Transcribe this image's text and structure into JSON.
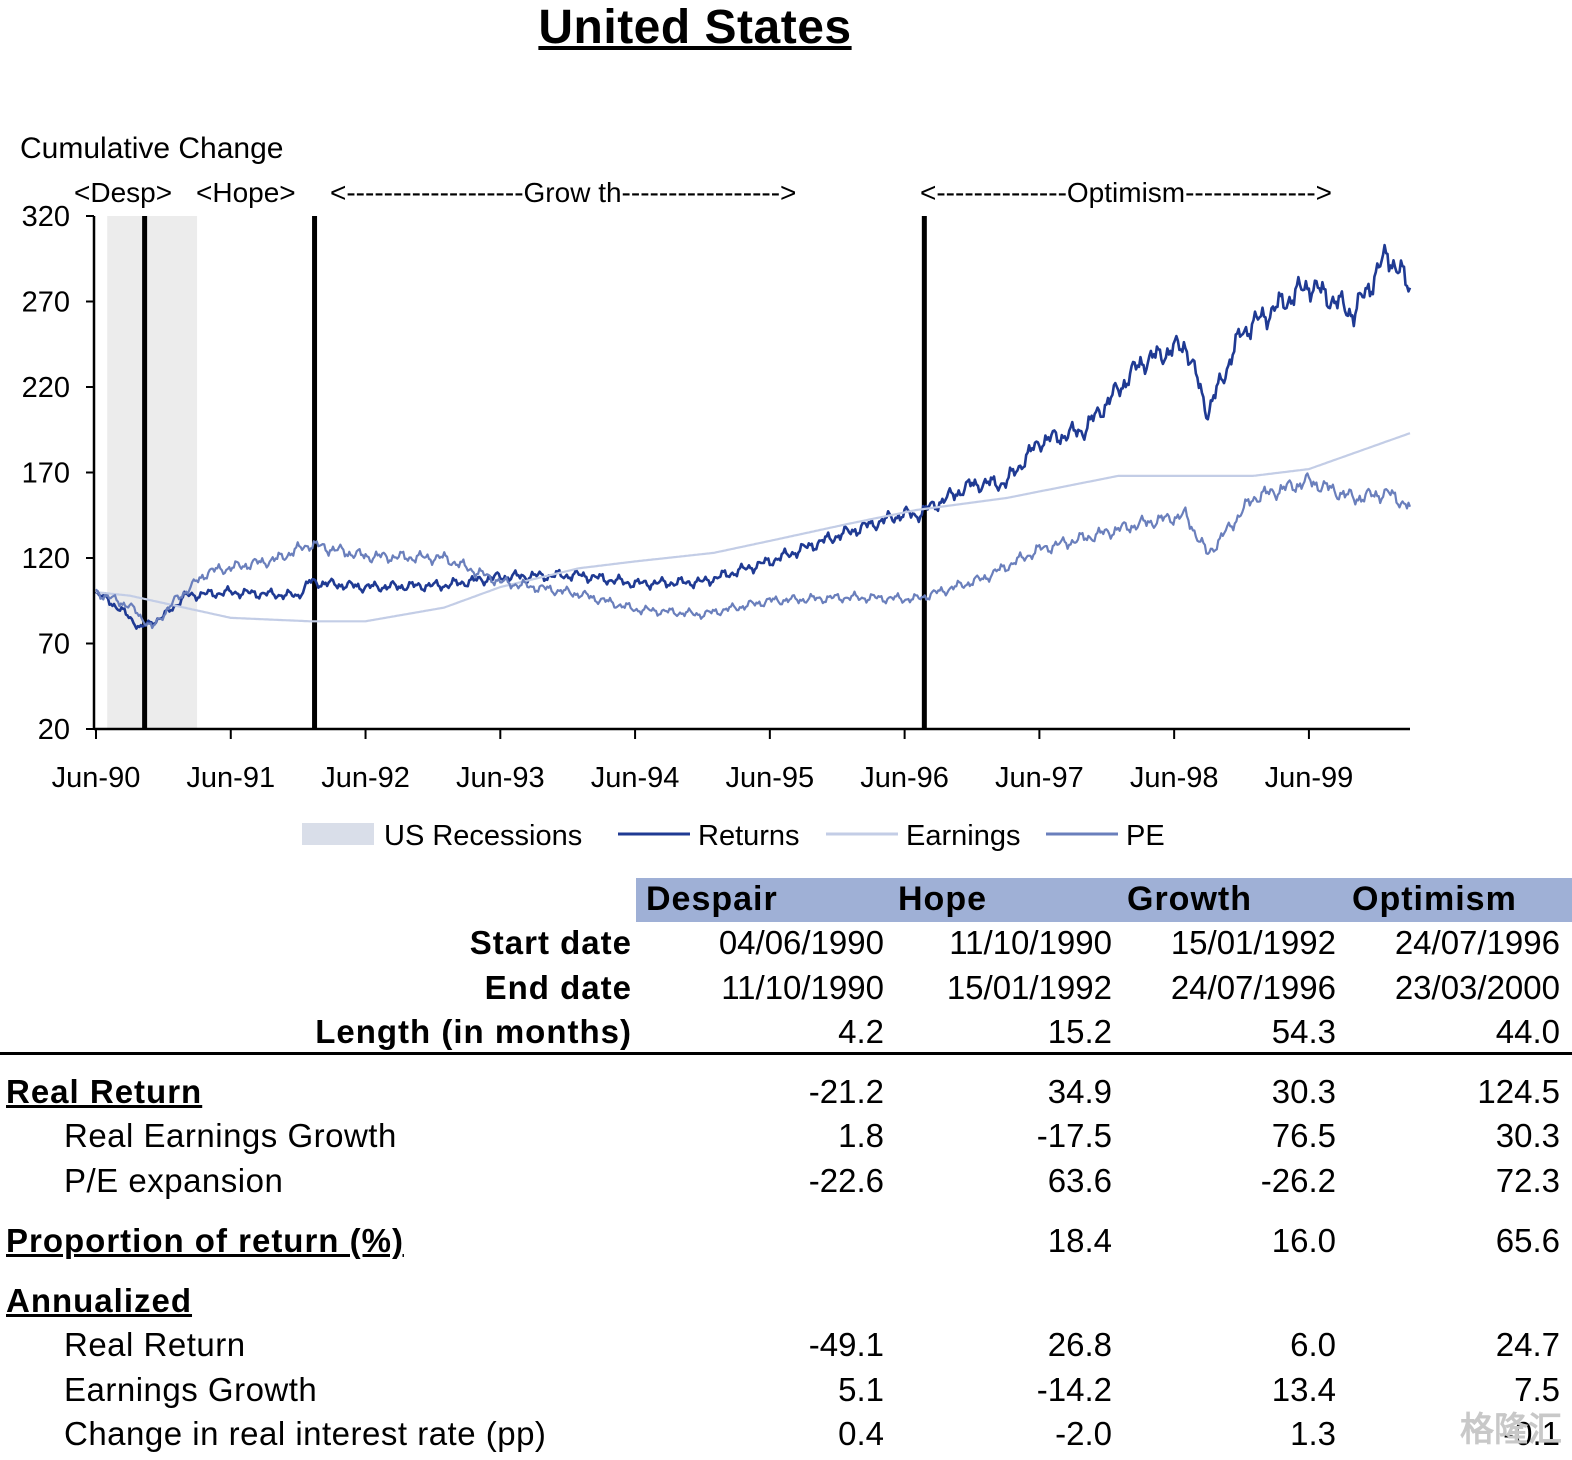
{
  "title": "United States",
  "chart_data": {
    "type": "line",
    "ylabel": "Cumulative Change",
    "ylim": [
      20,
      320
    ],
    "yticks": [
      "320",
      "270",
      "220",
      "170",
      "120",
      "70",
      "20"
    ],
    "xticks": [
      "Jun-90",
      "Jun-91",
      "Jun-92",
      "Jun-93",
      "Jun-94",
      "Jun-95",
      "Jun-96",
      "Jun-97",
      "Jun-98",
      "Jun-99"
    ],
    "phase_labels": [
      "<Desp>",
      "<Hope>",
      "<-------------------Grow th----------------->",
      "<--------------Optimism-------------->"
    ],
    "phase_boundaries": [
      "1990-10-11",
      "1992-01-15",
      "1996-07-24"
    ],
    "recession": {
      "start": "1990-07",
      "end": "1991-03"
    },
    "series": [
      {
        "name": "Returns",
        "color": "#1f3a93",
        "points": [
          [
            "1990-06",
            100
          ],
          [
            "1990-08",
            91
          ],
          [
            "1990-10",
            79
          ],
          [
            "1990-12",
            86
          ],
          [
            "1991-02",
            98
          ],
          [
            "1991-06",
            100
          ],
          [
            "1991-12",
            98
          ],
          [
            "1992-01",
            106
          ],
          [
            "1992-06",
            103
          ],
          [
            "1993-01",
            104
          ],
          [
            "1993-06",
            109
          ],
          [
            "1994-01",
            110
          ],
          [
            "1994-06",
            105
          ],
          [
            "1994-12",
            106
          ],
          [
            "1995-06",
            118
          ],
          [
            "1995-12",
            133
          ],
          [
            "1996-06",
            146
          ],
          [
            "1996-07",
            145
          ],
          [
            "1996-12",
            163
          ],
          [
            "1997-03",
            164
          ],
          [
            "1997-06",
            188
          ],
          [
            "1997-10",
            195
          ],
          [
            "1998-03",
            234
          ],
          [
            "1998-07",
            245
          ],
          [
            "1998-09",
            205
          ],
          [
            "1998-12",
            252
          ],
          [
            "1999-06",
            280
          ],
          [
            "1999-10",
            263
          ],
          [
            "2000-01",
            298
          ],
          [
            "2000-03",
            278
          ]
        ]
      },
      {
        "name": "Earnings",
        "color": "#c3cde6",
        "points": [
          [
            "1990-06",
            100
          ],
          [
            "1990-09",
            98
          ],
          [
            "1991-06",
            85
          ],
          [
            "1992-01",
            83
          ],
          [
            "1992-06",
            83
          ],
          [
            "1993-01",
            91
          ],
          [
            "1993-06",
            103
          ],
          [
            "1994-01",
            114
          ],
          [
            "1994-06",
            118
          ],
          [
            "1995-01",
            123
          ],
          [
            "1995-06",
            130
          ],
          [
            "1996-01",
            140
          ],
          [
            "1996-07",
            148
          ],
          [
            "1997-03",
            155
          ],
          [
            "1998-01",
            168
          ],
          [
            "1998-06",
            168
          ],
          [
            "1999-01",
            168
          ],
          [
            "1999-06",
            172
          ],
          [
            "2000-03",
            193
          ]
        ]
      },
      {
        "name": "PE",
        "color": "#6a7fbc",
        "points": [
          [
            "1990-06",
            100
          ],
          [
            "1990-09",
            92
          ],
          [
            "1990-11",
            79
          ],
          [
            "1991-01",
            95
          ],
          [
            "1991-04",
            112
          ],
          [
            "1991-10",
            119
          ],
          [
            "1992-01",
            128
          ],
          [
            "1992-06",
            121
          ],
          [
            "1993-01",
            120
          ],
          [
            "1993-06",
            106
          ],
          [
            "1994-01",
            99
          ],
          [
            "1994-06",
            90
          ],
          [
            "1994-12",
            87
          ],
          [
            "1995-06",
            95
          ],
          [
            "1996-01",
            97
          ],
          [
            "1996-07",
            96
          ],
          [
            "1997-01",
            108
          ],
          [
            "1997-06",
            125
          ],
          [
            "1998-03",
            140
          ],
          [
            "1998-07",
            145
          ],
          [
            "1998-09",
            122
          ],
          [
            "1999-01",
            155
          ],
          [
            "1999-06",
            165
          ],
          [
            "1999-10",
            155
          ],
          [
            "2000-01",
            158
          ],
          [
            "2000-03",
            150
          ]
        ]
      }
    ],
    "legend": [
      {
        "label": "US Recessions",
        "kind": "patch",
        "color": "#d9dee9"
      },
      {
        "label": "Returns",
        "kind": "line",
        "color": "#1f3a93"
      },
      {
        "label": "Earnings",
        "kind": "line",
        "color": "#c3cde6"
      },
      {
        "label": "PE",
        "kind": "line",
        "color": "#6a7fbc"
      }
    ],
    "legend_position": "bottom"
  },
  "table": {
    "headers": [
      "Despair",
      "Hope",
      "Growth",
      "Optimism"
    ],
    "header_color": "#9fb0d6",
    "rows": [
      {
        "label": "Start date",
        "values": [
          "04/06/1990",
          "11/10/1990",
          "15/01/1992",
          "24/07/1996"
        ]
      },
      {
        "label": "End date",
        "values": [
          "11/10/1990",
          "15/01/1992",
          "24/07/1996",
          "23/03/2000"
        ]
      },
      {
        "label": "Length (in months)",
        "values": [
          "4.2",
          "15.2",
          "54.3",
          "44.0"
        ]
      },
      {
        "label": "Real Return",
        "values": [
          "-21.2",
          "34.9",
          "30.3",
          "124.5"
        ]
      },
      {
        "label": "Real Earnings Growth",
        "values": [
          "1.8",
          "-17.5",
          "76.5",
          "30.3"
        ]
      },
      {
        "label": "P/E expansion",
        "values": [
          "-22.6",
          "63.6",
          "-26.2",
          "72.3"
        ]
      },
      {
        "label": "Proportion of return (%)",
        "values": [
          "",
          "18.4",
          "16.0",
          "65.6"
        ]
      },
      {
        "label": "Annualized",
        "values": [
          "",
          "",
          "",
          ""
        ]
      },
      {
        "label": "Real Return",
        "values": [
          "-49.1",
          "26.8",
          "6.0",
          "24.7"
        ]
      },
      {
        "label": "Earnings Growth",
        "values": [
          "5.1",
          "-14.2",
          "13.4",
          "7.5"
        ]
      },
      {
        "label": "Change in real interest rate (pp)",
        "values": [
          "0.4",
          "-2.0",
          "1.3",
          "-0.1"
        ]
      }
    ]
  },
  "watermark": "格隆汇"
}
